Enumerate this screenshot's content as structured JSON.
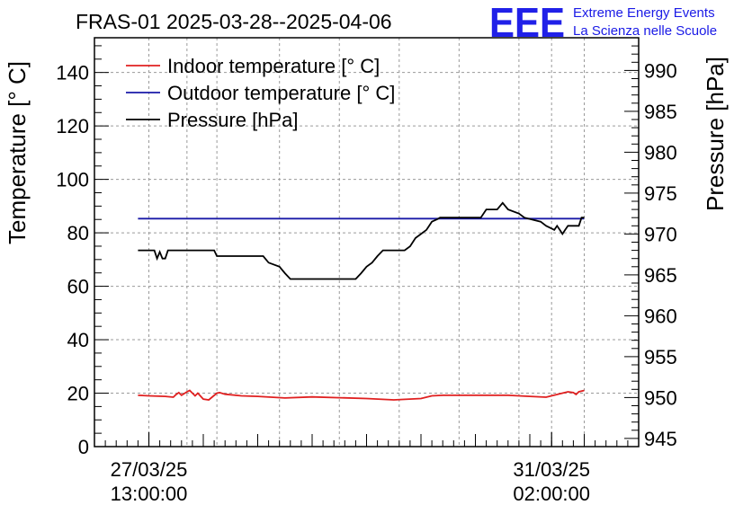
{
  "logo": {
    "mark": "EEE",
    "line1": "Extreme Energy Events",
    "line2": "La Scienza nelle Scuole",
    "color": "#1a1ae6"
  },
  "chart_data": {
    "type": "line",
    "title": "FRAS-01 2025-03-28--2025-04-06",
    "ylabel": "Temperature [° C]",
    "y2label": "Pressure [hPa]",
    "xlabel": "",
    "xlim": [
      0,
      100
    ],
    "ylim": [
      0,
      153
    ],
    "y2lim": [
      944,
      994
    ],
    "grid": true,
    "legend_position": "top-left",
    "x_ticks": [
      {
        "x": 10,
        "line1": "27/03/25",
        "line2": "13:00:00"
      },
      {
        "x": 84,
        "line1": "31/03/25",
        "line2": "02:00:00"
      }
    ],
    "y_ticks": [
      0,
      20,
      40,
      60,
      80,
      100,
      120,
      140
    ],
    "y2_ticks": [
      945,
      950,
      955,
      960,
      965,
      970,
      975,
      980,
      985,
      990
    ],
    "x_grid": [
      0,
      10,
      17,
      22.5,
      34,
      45,
      56,
      67,
      78,
      84,
      90,
      100
    ],
    "series": [
      {
        "name": "Indoor temperature [° C]",
        "color": "#e02020",
        "axis": "left",
        "x": [
          8,
          10,
          13,
          14.5,
          15,
          15.5,
          16,
          17,
          17.5,
          18,
          18.5,
          19,
          20,
          21,
          22.5,
          23,
          24,
          27,
          30,
          35,
          40,
          45,
          50,
          55,
          60,
          62,
          64,
          66,
          68,
          72,
          76,
          80,
          83,
          86,
          87,
          88,
          88.5,
          89,
          90
        ],
        "y": [
          19.2,
          19.0,
          18.8,
          18.5,
          19.5,
          20.2,
          19.2,
          20.5,
          21.0,
          20.0,
          19.0,
          20.0,
          17.8,
          17.5,
          20.0,
          20.2,
          19.6,
          19.0,
          18.8,
          18.2,
          18.6,
          18.3,
          18.0,
          17.5,
          18.0,
          19.0,
          19.2,
          19.2,
          19.2,
          19.2,
          19.2,
          18.8,
          18.5,
          20.0,
          20.5,
          20.2,
          19.5,
          20.5,
          21.0
        ]
      },
      {
        "name": "Outdoor temperature [° C]",
        "color": "#1a1aa8",
        "axis": "left",
        "x": [
          8,
          90
        ],
        "y": [
          85.3,
          85.3
        ]
      },
      {
        "name": "Pressure [hPa]",
        "color": "#000000",
        "axis": "right",
        "x": [
          8,
          11,
          11.5,
          12,
          12.5,
          13,
          13.5,
          22,
          22.5,
          31,
          32,
          34,
          35,
          36,
          48,
          49,
          50,
          51,
          52,
          53,
          57,
          58,
          58.5,
          59,
          60,
          61,
          62,
          63,
          63.5,
          64,
          71,
          72,
          74,
          75,
          76,
          78,
          79,
          82,
          83,
          84.5,
          85,
          85.5,
          86,
          86.5,
          87,
          89,
          89.5,
          90
        ],
        "y": [
          968.0,
          968.0,
          967.0,
          967.8,
          967.0,
          967.0,
          968.0,
          968.0,
          967.3,
          967.3,
          966.5,
          966.0,
          965.2,
          964.5,
          964.5,
          965.2,
          966.0,
          966.5,
          967.3,
          968.0,
          968.0,
          968.5,
          969.0,
          969.5,
          970.0,
          970.5,
          971.5,
          971.8,
          972.0,
          972.0,
          972.0,
          973.0,
          973.0,
          973.8,
          973.0,
          972.5,
          972.0,
          971.5,
          971.0,
          970.5,
          971.0,
          970.5,
          970.0,
          970.5,
          971.0,
          971.0,
          972.0,
          972.0
        ]
      }
    ]
  }
}
